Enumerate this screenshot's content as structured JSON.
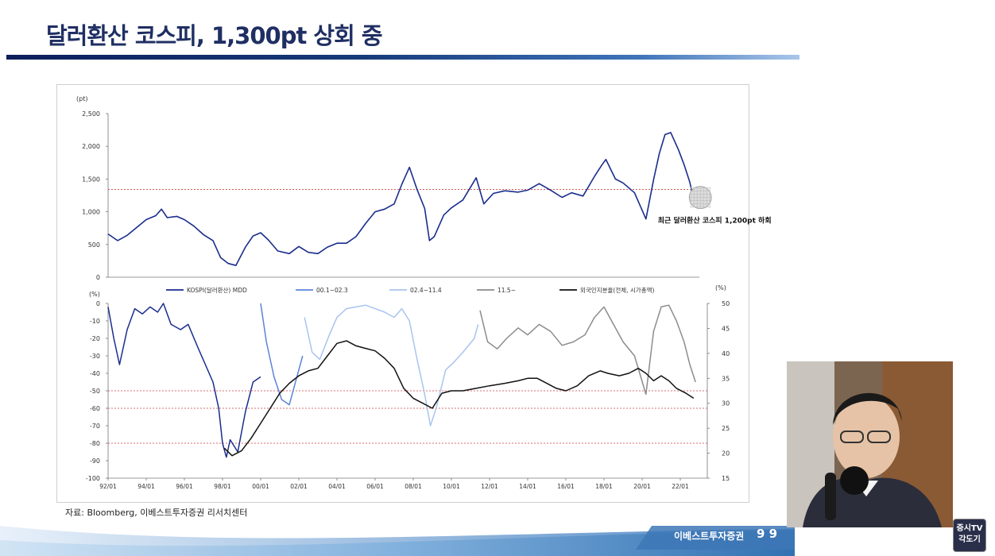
{
  "slide": {
    "title": "달러환산 코스피, 1,300pt 상회 중",
    "source": "자료: Bloomberg, 이베스트투자증권 리서치센터",
    "footer_brand": "이베스트투자증권",
    "footer_page": "9 9",
    "logo_line1": "증시TV",
    "logo_line2": "각도기"
  },
  "colors": {
    "title": "#1f2f63",
    "kospi": "#1a2d8c",
    "mdd_00": "#5b84d6",
    "mdd_02": "#a9c4ee",
    "mdd_11": "#8c8c8c",
    "foreign": "#111111",
    "refline": "#d04040"
  },
  "chart_data": [
    {
      "type": "line",
      "title": "",
      "ylabel": "(pt)",
      "ylim": [
        0,
        2500
      ],
      "yticks": [
        "2,500",
        "2,000",
        "1,500",
        "1,000",
        "500",
        "0"
      ],
      "xlim": [
        1992.0,
        2023.0
      ],
      "reference_line": 1340,
      "annotation": "최근 달러환산 코스피 1,200pt 하회",
      "series": [
        {
          "name": "KOSPI(달러환산) MDD",
          "points": [
            [
              1992.0,
              660
            ],
            [
              1992.5,
              560
            ],
            [
              1993.0,
              640
            ],
            [
              1993.5,
              760
            ],
            [
              1994.0,
              880
            ],
            [
              1994.5,
              940
            ],
            [
              1994.8,
              1040
            ],
            [
              1995.1,
              910
            ],
            [
              1995.6,
              930
            ],
            [
              1996.0,
              880
            ],
            [
              1996.5,
              780
            ],
            [
              1997.0,
              650
            ],
            [
              1997.5,
              560
            ],
            [
              1997.9,
              300
            ],
            [
              1998.3,
              210
            ],
            [
              1998.7,
              180
            ],
            [
              1999.2,
              460
            ],
            [
              1999.6,
              630
            ],
            [
              2000.0,
              680
            ],
            [
              2000.4,
              570
            ],
            [
              2000.9,
              400
            ],
            [
              2001.5,
              360
            ],
            [
              2002.0,
              470
            ],
            [
              2002.5,
              380
            ],
            [
              2003.0,
              360
            ],
            [
              2003.5,
              460
            ],
            [
              2004.0,
              520
            ],
            [
              2004.5,
              520
            ],
            [
              2005.0,
              620
            ],
            [
              2005.5,
              820
            ],
            [
              2006.0,
              1000
            ],
            [
              2006.5,
              1040
            ],
            [
              2007.0,
              1120
            ],
            [
              2007.4,
              1420
            ],
            [
              2007.8,
              1680
            ],
            [
              2008.2,
              1340
            ],
            [
              2008.6,
              1050
            ],
            [
              2008.85,
              560
            ],
            [
              2009.1,
              620
            ],
            [
              2009.6,
              950
            ],
            [
              2010.0,
              1060
            ],
            [
              2010.6,
              1180
            ],
            [
              2011.3,
              1520
            ],
            [
              2011.7,
              1120
            ],
            [
              2012.2,
              1280
            ],
            [
              2012.8,
              1320
            ],
            [
              2013.5,
              1300
            ],
            [
              2014.0,
              1330
            ],
            [
              2014.6,
              1430
            ],
            [
              2015.2,
              1330
            ],
            [
              2015.8,
              1220
            ],
            [
              2016.3,
              1290
            ],
            [
              2016.9,
              1240
            ],
            [
              2017.5,
              1540
            ],
            [
              2017.9,
              1720
            ],
            [
              2018.1,
              1800
            ],
            [
              2018.6,
              1500
            ],
            [
              2019.0,
              1440
            ],
            [
              2019.6,
              1290
            ],
            [
              2020.2,
              890
            ],
            [
              2020.6,
              1490
            ],
            [
              2020.9,
              1890
            ],
            [
              2021.2,
              2180
            ],
            [
              2021.5,
              2210
            ],
            [
              2021.9,
              1950
            ],
            [
              2022.2,
              1720
            ],
            [
              2022.5,
              1450
            ],
            [
              2022.7,
              1190
            ],
            [
              2022.8,
              1230
            ]
          ]
        }
      ]
    },
    {
      "type": "line",
      "ylabel_left": "(%)",
      "ylabel_right": "(%)",
      "ylim_left": [
        -100,
        0
      ],
      "ylim_right": [
        15,
        50
      ],
      "yticks_left": [
        "0",
        "-10",
        "-20",
        "-30",
        "-40",
        "-50",
        "-60",
        "-70",
        "-80",
        "-90",
        "-100"
      ],
      "yticks_right": [
        "50",
        "45",
        "40",
        "35",
        "30",
        "25",
        "20",
        "15"
      ],
      "xlim": [
        1992.0,
        2023.0
      ],
      "xticks": [
        "92/01",
        "94/01",
        "96/01",
        "98/01",
        "00/01",
        "02/01",
        "04/01",
        "06/01",
        "08/01",
        "10/01",
        "12/01",
        "14/01",
        "16/01",
        "18/01",
        "20/01",
        "22/01"
      ],
      "reference_lines_left": [
        -50,
        -60,
        -80
      ],
      "series": [
        {
          "name": "KOSPI(달러환산) MDD",
          "axis": "left",
          "points": [
            [
              1992.0,
              -2
            ],
            [
              1992.3,
              -20
            ],
            [
              1992.6,
              -35
            ],
            [
              1993.0,
              -15
            ],
            [
              1993.4,
              -3
            ],
            [
              1993.8,
              -6
            ],
            [
              1994.2,
              -2
            ],
            [
              1994.6,
              -5
            ],
            [
              1994.9,
              0
            ],
            [
              1995.3,
              -12
            ],
            [
              1995.8,
              -15
            ],
            [
              1996.2,
              -12
            ],
            [
              1996.7,
              -25
            ],
            [
              1997.1,
              -35
            ],
            [
              1997.5,
              -45
            ],
            [
              1997.8,
              -60
            ],
            [
              1998.0,
              -80
            ],
            [
              1998.2,
              -88
            ],
            [
              1998.4,
              -78
            ],
            [
              1998.8,
              -85
            ],
            [
              1999.2,
              -62
            ],
            [
              1999.6,
              -45
            ],
            [
              2000.0,
              -42
            ]
          ]
        },
        {
          "name": "00.1~02.3",
          "axis": "left",
          "points": [
            [
              2000.0,
              0
            ],
            [
              2000.3,
              -22
            ],
            [
              2000.7,
              -42
            ],
            [
              2001.1,
              -55
            ],
            [
              2001.5,
              -58
            ],
            [
              2001.9,
              -42
            ],
            [
              2002.2,
              -30
            ]
          ]
        },
        {
          "name": "02.4~11.4",
          "axis": "left",
          "points": [
            [
              2002.3,
              -8
            ],
            [
              2002.7,
              -28
            ],
            [
              2003.1,
              -32
            ],
            [
              2003.6,
              -18
            ],
            [
              2004.0,
              -8
            ],
            [
              2004.5,
              -3
            ],
            [
              2005.0,
              -2
            ],
            [
              2005.5,
              -1
            ],
            [
              2006.0,
              -3
            ],
            [
              2006.5,
              -5
            ],
            [
              2007.0,
              -8
            ],
            [
              2007.4,
              -3
            ],
            [
              2007.8,
              -10
            ],
            [
              2008.2,
              -32
            ],
            [
              2008.6,
              -52
            ],
            [
              2008.9,
              -70
            ],
            [
              2009.2,
              -60
            ],
            [
              2009.7,
              -38
            ],
            [
              2010.1,
              -34
            ],
            [
              2010.6,
              -28
            ],
            [
              2011.2,
              -20
            ],
            [
              2011.4,
              -12
            ]
          ]
        },
        {
          "name": "11.5~",
          "axis": "left",
          "points": [
            [
              2011.5,
              -4
            ],
            [
              2011.9,
              -22
            ],
            [
              2012.4,
              -26
            ],
            [
              2012.9,
              -20
            ],
            [
              2013.5,
              -14
            ],
            [
              2014.0,
              -18
            ],
            [
              2014.6,
              -12
            ],
            [
              2015.2,
              -16
            ],
            [
              2015.8,
              -24
            ],
            [
              2016.4,
              -22
            ],
            [
              2017.0,
              -18
            ],
            [
              2017.5,
              -8
            ],
            [
              2018.0,
              -2
            ],
            [
              2018.5,
              -12
            ],
            [
              2019.0,
              -22
            ],
            [
              2019.6,
              -30
            ],
            [
              2020.2,
              -52
            ],
            [
              2020.6,
              -16
            ],
            [
              2021.0,
              -2
            ],
            [
              2021.4,
              -1
            ],
            [
              2021.8,
              -10
            ],
            [
              2022.2,
              -22
            ],
            [
              2022.5,
              -35
            ],
            [
              2022.8,
              -45
            ]
          ]
        },
        {
          "name": "외국인지분율(전체, 시가총액)",
          "axis": "right",
          "points": [
            [
              1998.1,
              21
            ],
            [
              1998.5,
              19.5
            ],
            [
              1999.0,
              20.5
            ],
            [
              1999.5,
              23
            ],
            [
              2000.0,
              26
            ],
            [
              2000.5,
              29
            ],
            [
              2001.0,
              32
            ],
            [
              2001.5,
              34
            ],
            [
              2002.0,
              35.5
            ],
            [
              2002.5,
              36.5
            ],
            [
              2003.0,
              37
            ],
            [
              2003.5,
              39.5
            ],
            [
              2004.0,
              42
            ],
            [
              2004.5,
              42.5
            ],
            [
              2005.0,
              41.5
            ],
            [
              2005.5,
              41
            ],
            [
              2006.0,
              40.5
            ],
            [
              2006.5,
              39
            ],
            [
              2007.0,
              37
            ],
            [
              2007.5,
              33
            ],
            [
              2008.0,
              31
            ],
            [
              2008.5,
              30
            ],
            [
              2009.0,
              29
            ],
            [
              2009.5,
              32
            ],
            [
              2010.0,
              32.5
            ],
            [
              2010.6,
              32.5
            ],
            [
              2011.3,
              33
            ],
            [
              2012.0,
              33.5
            ],
            [
              2012.8,
              34
            ],
            [
              2013.5,
              34.5
            ],
            [
              2014.0,
              35
            ],
            [
              2014.5,
              35
            ],
            [
              2015.0,
              34
            ],
            [
              2015.5,
              33
            ],
            [
              2016.0,
              32.5
            ],
            [
              2016.6,
              33.5
            ],
            [
              2017.2,
              35.5
            ],
            [
              2017.8,
              36.5
            ],
            [
              2018.2,
              36
            ],
            [
              2018.8,
              35.5
            ],
            [
              2019.3,
              36
            ],
            [
              2019.8,
              37
            ],
            [
              2020.2,
              36
            ],
            [
              2020.6,
              34.5
            ],
            [
              2021.0,
              35.5
            ],
            [
              2021.4,
              34.5
            ],
            [
              2021.8,
              33
            ],
            [
              2022.3,
              32
            ],
            [
              2022.7,
              31
            ]
          ]
        }
      ]
    }
  ]
}
